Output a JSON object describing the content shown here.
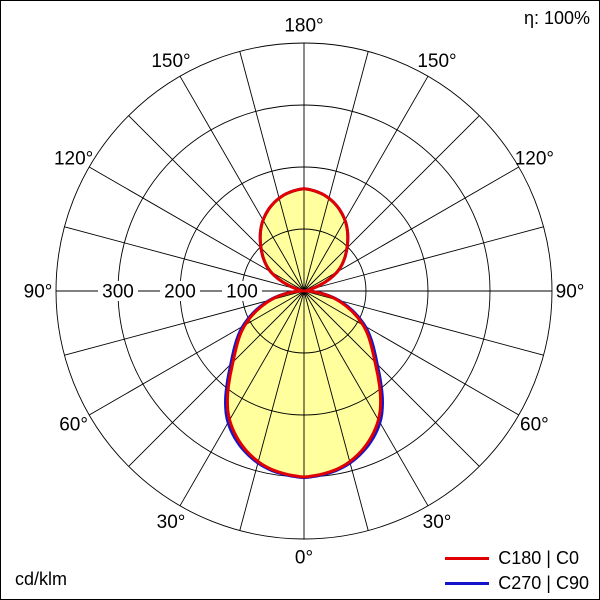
{
  "chart_data": {
    "type": "polar",
    "unit": "cd/klm",
    "efficiency": "η: 100%",
    "gamma_deg": [
      0,
      15,
      30,
      45,
      60,
      75,
      90,
      105,
      120,
      135,
      150,
      165,
      180
    ],
    "series": [
      {
        "id": "c180-c0",
        "name": "C180 | C0",
        "color": "#e10000",
        "values": [
          300,
          285,
          240,
          162,
          110,
          55,
          5,
          12,
          62,
          98,
          132,
          155,
          165
        ]
      },
      {
        "id": "c270-c90",
        "name": "C270 | C90",
        "color": "#1414cc",
        "values": [
          301,
          287,
          245,
          167,
          114,
          58,
          5,
          12,
          62,
          98,
          132,
          155,
          165
        ]
      }
    ],
    "radial_ticks": [
      100,
      200,
      300
    ],
    "radial_max": 400,
    "angle_labels": [
      "0°",
      "30°",
      "60°",
      "90°",
      "120°",
      "150°",
      "180°"
    ],
    "fill_color": "#ffff9e",
    "grid_color": "#000000",
    "legend_position": "bottom-right"
  }
}
